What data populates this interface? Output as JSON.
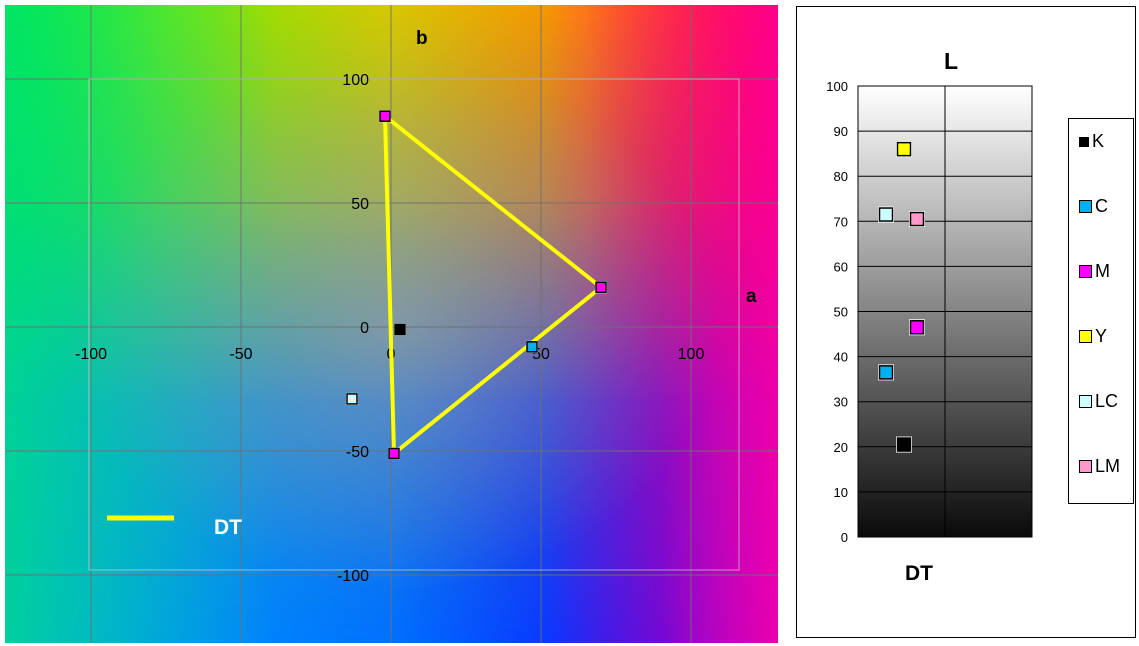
{
  "chart_data": [
    {
      "type": "scatter",
      "title": "",
      "xlabel": "a",
      "ylabel": "b",
      "xlim": [
        -120,
        120
      ],
      "ylim": [
        -120,
        120
      ],
      "x_ticks": [
        "-100",
        "-50",
        "0",
        "50",
        "100"
      ],
      "y_ticks": [
        "100",
        "50",
        "0",
        "-50",
        "-100"
      ],
      "grid": true,
      "background": "CIELAB a*b* color plane",
      "series": [
        {
          "name": "DT",
          "type": "line",
          "color": "#ffff00",
          "points": [
            [
              -2,
              85
            ],
            [
              70,
              16
            ],
            [
              1,
              -51
            ],
            [
              -2,
              85
            ]
          ]
        }
      ],
      "markers": [
        {
          "label": "K",
          "x": 3,
          "y": -1,
          "fill": "#000000"
        },
        {
          "label": "C",
          "x": 47,
          "y": -8,
          "fill": "#00b0f0"
        },
        {
          "label": "M",
          "x": 70,
          "y": 16,
          "fill": "#ff00ff"
        },
        {
          "label": "M",
          "x": -2,
          "y": 85,
          "fill": "#ff00ff"
        },
        {
          "label": "M",
          "x": 1,
          "y": -51,
          "fill": "#ff00ff"
        },
        {
          "label": "LC",
          "x": -13,
          "y": -29,
          "fill": "#ccffff"
        }
      ],
      "legend": {
        "label": "DT",
        "position": "bottom-left"
      }
    },
    {
      "type": "scatter",
      "title": "L",
      "xlabel": "DT",
      "ylabel": "",
      "ylim": [
        0,
        100
      ],
      "y_ticks": [
        "0",
        "10",
        "20",
        "30",
        "40",
        "50",
        "60",
        "70",
        "80",
        "90",
        "100"
      ],
      "grid": true,
      "points": [
        {
          "name": "K",
          "column": 1,
          "value": 20.5,
          "fill": "#000000"
        },
        {
          "name": "C",
          "column": 0,
          "value": 36.5,
          "fill": "#00b0f0"
        },
        {
          "name": "M",
          "column": 2,
          "value": 46.5,
          "fill": "#ff00ff"
        },
        {
          "name": "Y",
          "column": 1,
          "value": 86,
          "fill": "#ffff00"
        },
        {
          "name": "LC",
          "column": 0,
          "value": 71.5,
          "fill": "#ccffff"
        },
        {
          "name": "LM",
          "column": 2,
          "value": 70.5,
          "fill": "#ff99cc"
        }
      ],
      "legend": {
        "position": "right",
        "items": [
          {
            "label": "K",
            "color": "#000000"
          },
          {
            "label": "C",
            "color": "#00b0f0"
          },
          {
            "label": "M",
            "color": "#ff00ff"
          },
          {
            "label": "Y",
            "color": "#ffff00"
          },
          {
            "label": "LC",
            "color": "#ccffff"
          },
          {
            "label": "LM",
            "color": "#ff99cc"
          }
        ]
      }
    }
  ]
}
